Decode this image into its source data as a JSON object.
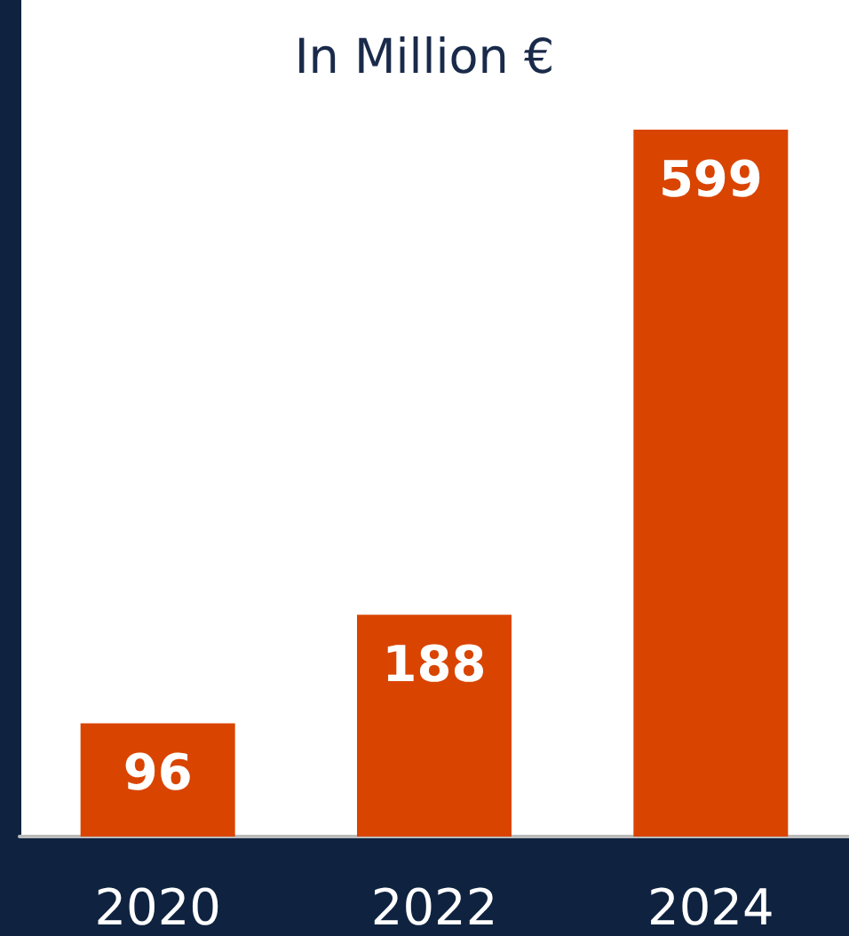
{
  "chart_data": {
    "type": "bar",
    "title": "In Million €",
    "categories": [
      "2020",
      "2022",
      "2024"
    ],
    "values": [
      96,
      188,
      599
    ],
    "color": "#d94400",
    "data_labels": true
  }
}
